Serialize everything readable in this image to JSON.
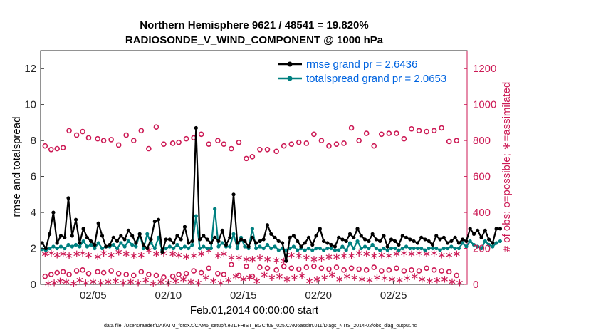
{
  "chart_data": {
    "type": "line",
    "title_line1": "Northern Hemisphere 9621 / 48541 = 19.820%",
    "title_line2": "RADIOSONDE_V_WIND_COMPONENT @ 1000 hPa",
    "xlabel": "Feb.01,2014 00:00:00 start",
    "ylabel_left": "rmse and totalspread",
    "ylabel_right": "# of obs: o=possible; ∗=assimilated",
    "footnote": "data file: /Users/raeder/DAI/ATM_forcXX/CAM6_setup/f.e21.FHIST_BGC.f09_025.CAM6assim.011/Diags_NTrS_2014-02/obs_diag_output.nc",
    "xlim": [
      0.5,
      28.9
    ],
    "ylim_left": [
      0,
      13
    ],
    "ylim_right": [
      0,
      1300
    ],
    "x_ticks": [
      4,
      9,
      14,
      19,
      24
    ],
    "x_tick_labels": [
      "02/05",
      "02/10",
      "02/15",
      "02/20",
      "02/25"
    ],
    "y_left_ticks": [
      "0",
      "2",
      "4",
      "6",
      "8",
      "10",
      "12"
    ],
    "y_right_ticks": [
      "0",
      "200",
      "400",
      "600",
      "800",
      "1000",
      "1200"
    ],
    "colors": {
      "rmse": "#000000",
      "spread": "#008080",
      "obs": "#cc1a55",
      "legend_text": "#0064e0"
    },
    "series": [
      {
        "name": "rmse grand pr = 2.6436",
        "axis": "left",
        "values": [
          2.3,
          2.0,
          2.8,
          4.0,
          2.3,
          2.7,
          2.6,
          4.8,
          2.7,
          3.6,
          2.3,
          3.1,
          2.6,
          2.4,
          2.2,
          3.4,
          2.7,
          2.1,
          2.2,
          2.6,
          2.4,
          2.7,
          2.5,
          3.0,
          2.7,
          2.3,
          2.8,
          2.2,
          2.0,
          2.5,
          3.5,
          3.6,
          1.8,
          2.5,
          2.5,
          2.3,
          2.7,
          2.5,
          3.2,
          2.3,
          2.4,
          8.7,
          2.5,
          2.7,
          2.5,
          2.3,
          2.6,
          2.4,
          3.0,
          2.2,
          2.6,
          5.0,
          2.3,
          2.5,
          2.4,
          2.1,
          2.6,
          2.3,
          2.4,
          2.5,
          3.3,
          2.8,
          2.6,
          2.4,
          2.3,
          1.3,
          2.6,
          2.7,
          2.4,
          2.1,
          2.3,
          2.6,
          2.2,
          2.7,
          3.1,
          2.4,
          2.3,
          2.2,
          2.1,
          2.6,
          2.5,
          2.4,
          2.8,
          2.6,
          3.1,
          2.7,
          2.5,
          2.4,
          2.8,
          2.5,
          2.4,
          2.7,
          2.1,
          2.5,
          2.4,
          2.2,
          2.7,
          2.6,
          2.5,
          2.4,
          2.3,
          2.6,
          2.5,
          2.4,
          2.2,
          2.7,
          2.5,
          2.6,
          2.3,
          2.4,
          2.6,
          2.3,
          2.5,
          2.4,
          3.1,
          2.8,
          3.0,
          2.6,
          3.0,
          2.5,
          2.3,
          3.1,
          3.1
        ]
      },
      {
        "name": "totalspread grand pr = 2.0653",
        "axis": "left",
        "values": [
          1.95,
          1.9,
          2.0,
          2.1,
          2.0,
          2.1,
          2.0,
          2.2,
          2.1,
          2.2,
          2.1,
          2.4,
          2.1,
          2.2,
          2.0,
          2.3,
          2.0,
          2.1,
          2.1,
          2.2,
          2.0,
          2.3,
          2.1,
          2.4,
          2.2,
          2.1,
          2.8,
          2.0,
          2.8,
          2.3,
          2.0,
          2.6,
          1.9,
          2.0,
          2.1,
          2.0,
          2.2,
          2.0,
          2.1,
          2.0,
          2.2,
          3.8,
          2.0,
          2.1,
          2.0,
          2.0,
          4.2,
          2.1,
          2.3,
          2.1,
          2.1,
          2.8,
          2.0,
          2.6,
          2.1,
          2.0,
          3.1,
          2.0,
          2.1,
          2.0,
          2.2,
          2.0,
          2.1,
          1.9,
          2.0,
          1.9,
          2.0,
          2.1,
          1.9,
          2.0,
          1.9,
          2.0,
          1.9,
          2.0,
          2.0,
          1.9,
          2.0,
          2.0,
          1.9,
          1.9,
          2.1,
          1.9,
          2.3,
          2.0,
          2.4,
          2.0,
          2.1,
          2.0,
          2.2,
          2.0,
          1.9,
          2.0,
          1.9,
          2.0,
          2.0,
          1.9,
          2.0,
          2.1,
          2.0,
          2.0,
          2.0,
          2.0,
          1.9,
          2.0,
          2.0,
          2.0,
          1.9,
          2.0,
          2.0,
          2.1,
          2.0,
          2.0,
          2.3,
          2.1,
          2.4,
          2.2,
          2.1,
          2.0,
          2.4,
          2.2,
          2.1,
          2.3,
          2.4
        ]
      },
      {
        "name": "obs possible (upper band)",
        "axis": "right",
        "marker": "circle",
        "days": [
          0.8,
          1.2,
          1.6,
          2.0,
          2.4,
          2.9,
          3.3,
          3.7,
          4.3,
          4.7,
          5.2,
          5.7,
          6.2,
          6.7,
          7.2,
          7.7,
          8.2,
          8.7,
          9.3,
          9.7,
          10.2,
          10.7,
          11.2,
          11.7,
          12.3,
          12.7,
          13.2,
          13.7,
          14.2,
          14.6,
          15.1,
          15.6,
          16.2,
          16.7,
          17.2,
          17.7,
          18.2,
          18.7,
          19.2,
          19.7,
          20.2,
          20.7,
          21.2,
          21.7,
          22.2,
          22.7,
          23.2,
          23.7,
          24.2,
          24.7,
          25.2,
          25.7,
          26.2,
          26.7,
          27.2,
          27.7,
          28.2
        ],
        "values": [
          770,
          750,
          755,
          760,
          855,
          830,
          850,
          815,
          810,
          800,
          805,
          775,
          830,
          800,
          855,
          755,
          875,
          780,
          785,
          790,
          810,
          815,
          835,
          780,
          800,
          780,
          755,
          790,
          700,
          710,
          750,
          750,
          740,
          770,
          780,
          790,
          785,
          835,
          800,
          770,
          780,
          785,
          870,
          800,
          840,
          770,
          835,
          840,
          840,
          810,
          865,
          855,
          850,
          855,
          870,
          795,
          800
        ]
      },
      {
        "name": "obs assimilated (middle band)",
        "axis": "right",
        "marker": "star",
        "days": [
          0.8,
          1.2,
          1.6,
          2.0,
          2.4,
          2.9,
          3.3,
          3.7,
          4.3,
          4.7,
          5.2,
          5.7,
          6.2,
          6.7,
          7.2,
          7.7,
          8.2,
          8.7,
          9.3,
          9.7,
          10.2,
          10.7,
          11.2,
          11.7,
          12.3,
          12.7,
          13.2,
          13.7,
          14.2,
          14.6,
          15.1,
          15.6,
          16.2,
          16.7,
          17.2,
          17.7,
          18.2,
          18.7,
          19.2,
          19.7,
          20.2,
          20.7,
          21.2,
          21.7,
          22.2,
          22.7,
          23.2,
          23.7,
          24.2,
          24.7,
          25.2,
          25.7,
          26.2,
          26.7,
          27.2,
          27.7,
          28.2
        ],
        "values": [
          170,
          175,
          165,
          170,
          160,
          170,
          175,
          165,
          155,
          175,
          165,
          180,
          170,
          160,
          165,
          190,
          170,
          175,
          170,
          165,
          155,
          160,
          170,
          190,
          160,
          170,
          150,
          150,
          140,
          140,
          150,
          140,
          135,
          130,
          165,
          160,
          150,
          140,
          145,
          155,
          155,
          160,
          160,
          175,
          170,
          160,
          165,
          160,
          170,
          175,
          170,
          175,
          170,
          175,
          165,
          165,
          170
        ]
      },
      {
        "name": "obs possible (lower band)",
        "axis": "right",
        "marker": "circle",
        "days": [
          0.8,
          1.2,
          1.6,
          2.0,
          2.4,
          2.9,
          3.3,
          3.7,
          4.3,
          4.7,
          5.2,
          5.7,
          6.2,
          6.7,
          7.2,
          7.7,
          8.2,
          8.7,
          9.3,
          9.7,
          10.2,
          10.7,
          11.2,
          11.7,
          12.3,
          12.7,
          13.2,
          13.7,
          14.2,
          14.6,
          15.1,
          15.6,
          16.2,
          16.7,
          17.2,
          17.7,
          18.2,
          18.7,
          19.2,
          19.7,
          20.2,
          20.7,
          21.2,
          21.7,
          22.2,
          22.7,
          23.2,
          23.7,
          24.2,
          24.7,
          25.2,
          25.7,
          26.2,
          26.7,
          27.2,
          27.7,
          28.2
        ],
        "values": [
          45,
          55,
          65,
          70,
          55,
          75,
          80,
          60,
          70,
          65,
          75,
          60,
          55,
          50,
          70,
          55,
          50,
          40,
          45,
          55,
          60,
          75,
          65,
          90,
          60,
          55,
          110,
          50,
          100,
          45,
          95,
          90,
          80,
          100,
          90,
          85,
          95,
          100,
          90,
          85,
          95,
          80,
          90,
          85,
          80,
          95,
          75,
          80,
          90,
          75,
          80,
          75,
          90,
          80,
          75,
          70,
          50
        ]
      },
      {
        "name": "obs assimilated (lower band)",
        "axis": "right",
        "marker": "star",
        "days": [
          1.0,
          1.4,
          1.8,
          2.2,
          2.7,
          3.1,
          3.5,
          4.0,
          4.5,
          5.0,
          5.5,
          6.0,
          6.5,
          7.0,
          7.5,
          8.0,
          8.5,
          9.0,
          9.5,
          10.0,
          10.5,
          11.0,
          11.5,
          12.0,
          12.5,
          13.0,
          13.5,
          14.0,
          14.4,
          14.9,
          15.4,
          15.9,
          16.4,
          16.9,
          17.4,
          17.9,
          18.4,
          18.9,
          19.4,
          19.9,
          20.4,
          20.9,
          21.4,
          21.9,
          22.4,
          22.9,
          23.4,
          23.9,
          24.4,
          24.9,
          25.4,
          25.9,
          26.4,
          26.9,
          27.4,
          27.9,
          28.4
        ],
        "values": [
          5,
          10,
          20,
          15,
          5,
          25,
          10,
          15,
          10,
          15,
          20,
          10,
          15,
          10,
          25,
          5,
          15,
          10,
          20,
          30,
          15,
          10,
          40,
          20,
          10,
          25,
          45,
          30,
          40,
          20,
          55,
          40,
          45,
          30,
          40,
          50,
          20,
          30,
          40,
          55,
          30,
          45,
          40,
          30,
          25,
          40,
          35,
          30,
          25,
          35,
          45,
          30,
          20,
          25,
          30,
          15,
          10
        ]
      }
    ]
  }
}
